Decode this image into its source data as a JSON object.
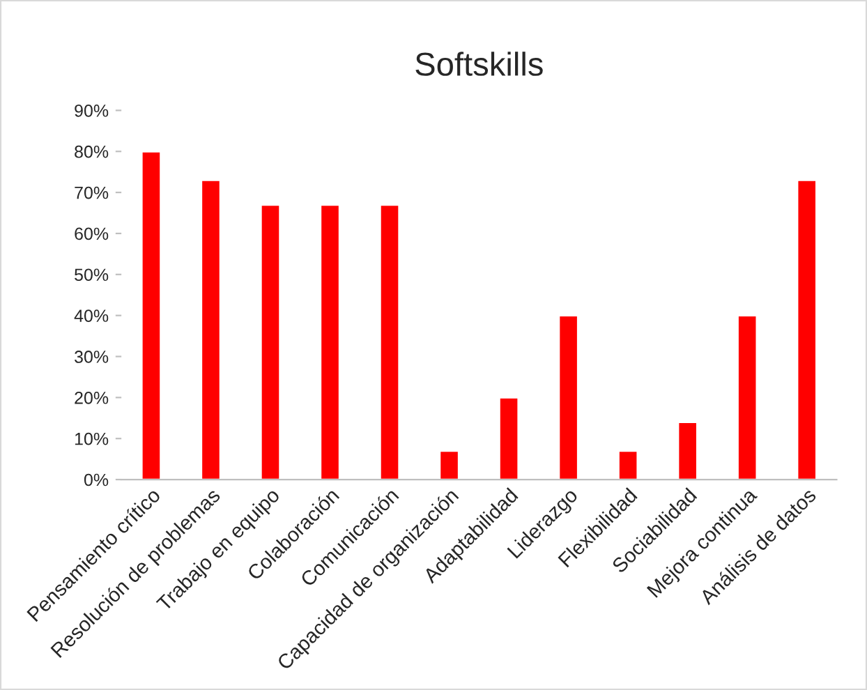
{
  "chart_data": {
    "type": "bar",
    "title": "Softskills",
    "categories": [
      "Pensamiento crítico",
      "Resolución de problemas",
      "Trabajo en equipo",
      "Colaboración",
      "Comunicación",
      "Capacidad de organización",
      "Adaptabilidad",
      "Liderazgo",
      "Flexibilidad",
      "Sociabilidad",
      "Mejora continua",
      "Análisis de datos"
    ],
    "values": [
      80,
      73,
      67,
      67,
      67,
      7,
      20,
      40,
      7,
      14,
      40,
      73
    ],
    "color": "#ff0000",
    "ylim": [
      0,
      90
    ],
    "yticks": [
      {
        "value": 0,
        "label": "0%"
      },
      {
        "value": 10,
        "label": "10%"
      },
      {
        "value": 20,
        "label": "20%"
      },
      {
        "value": 30,
        "label": "30%"
      },
      {
        "value": 40,
        "label": "40%"
      },
      {
        "value": 50,
        "label": "50%"
      },
      {
        "value": 60,
        "label": "60%"
      },
      {
        "value": 70,
        "label": "70%"
      },
      {
        "value": 80,
        "label": "80%"
      },
      {
        "value": 90,
        "label": "90%"
      }
    ],
    "grid": false,
    "legend": false
  }
}
